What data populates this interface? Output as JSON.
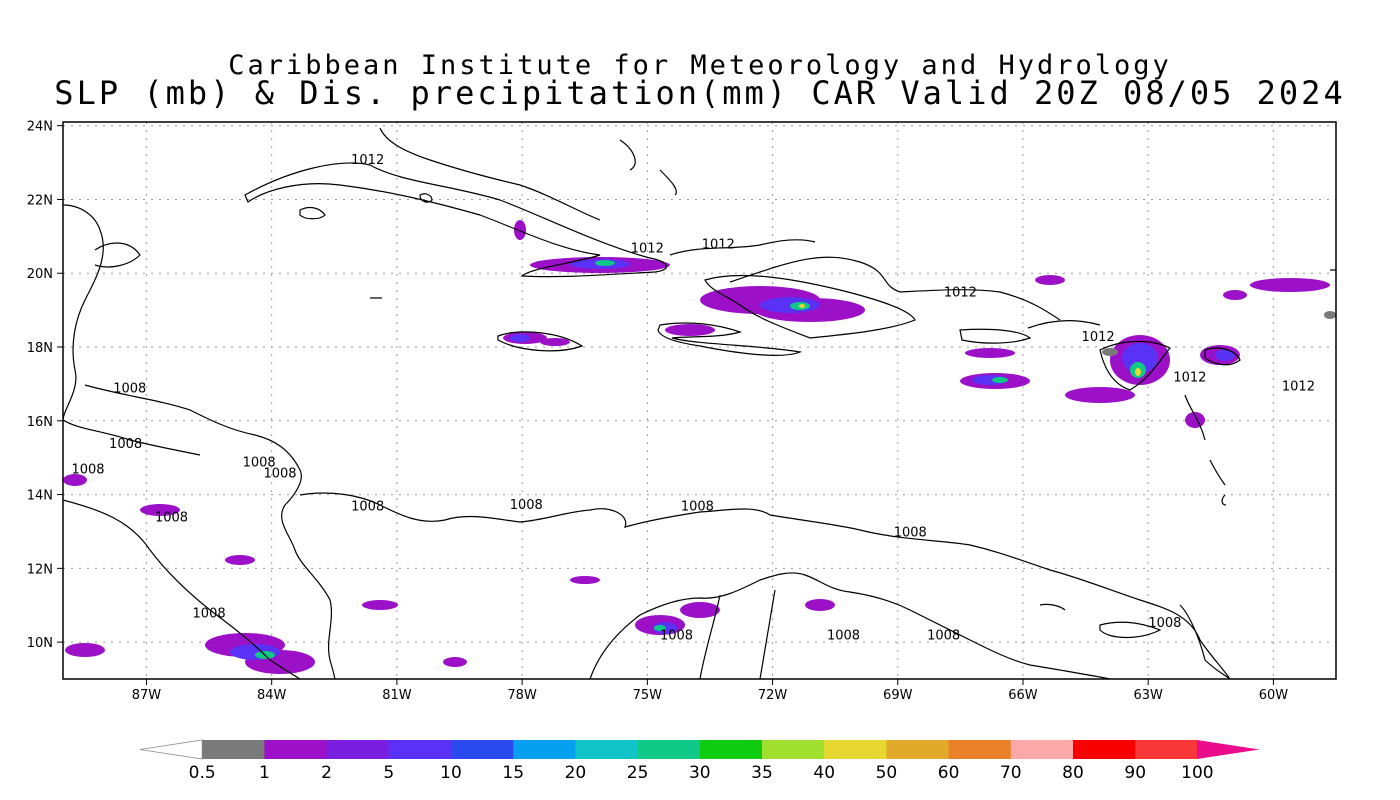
{
  "header": {
    "institute": "Caribbean Institute for Meteorology and Hydrology",
    "product": "SLP (mb) & Dis. precipitation(mm) CAR Valid 20Z 08/05 2024"
  },
  "map": {
    "lon_range": [
      -89,
      -58.5
    ],
    "lat_range": [
      9,
      24.1
    ],
    "lat_ticks": [
      {
        "value": 24,
        "label": "24N"
      },
      {
        "value": 22,
        "label": "22N"
      },
      {
        "value": 20,
        "label": "20N"
      },
      {
        "value": 18,
        "label": "18N"
      },
      {
        "value": 16,
        "label": "16N"
      },
      {
        "value": 14,
        "label": "14N"
      },
      {
        "value": 12,
        "label": "12N"
      },
      {
        "value": 10,
        "label": "10N"
      }
    ],
    "lon_ticks": [
      {
        "value": -87,
        "label": "87W"
      },
      {
        "value": -84,
        "label": "84W"
      },
      {
        "value": -81,
        "label": "81W"
      },
      {
        "value": -78,
        "label": "78W"
      },
      {
        "value": -75,
        "label": "75W"
      },
      {
        "value": -72,
        "label": "72W"
      },
      {
        "value": -69,
        "label": "69W"
      },
      {
        "value": -66,
        "label": "66W"
      },
      {
        "value": -63,
        "label": "63W"
      },
      {
        "value": -60,
        "label": "60W"
      }
    ],
    "isobar_labels": [
      {
        "text": "1012",
        "lon": -81.7,
        "lat": 23.1
      },
      {
        "text": "1012",
        "lon": -75.0,
        "lat": 20.7
      },
      {
        "text": "1012",
        "lon": -73.3,
        "lat": 20.8
      },
      {
        "text": "1012",
        "lon": -67.5,
        "lat": 19.5
      },
      {
        "text": "1012",
        "lon": -64.2,
        "lat": 18.3
      },
      {
        "text": "1012",
        "lon": -62.0,
        "lat": 17.2
      },
      {
        "text": "1012",
        "lon": -59.4,
        "lat": 16.95
      },
      {
        "text": "1008",
        "lon": -87.4,
        "lat": 16.9
      },
      {
        "text": "1008",
        "lon": -87.5,
        "lat": 15.4
      },
      {
        "text": "1008",
        "lon": -88.4,
        "lat": 14.7
      },
      {
        "text": "1008",
        "lon": -84.3,
        "lat": 14.9
      },
      {
        "text": "1008",
        "lon": -83.8,
        "lat": 14.6
      },
      {
        "text": "1008",
        "lon": -86.4,
        "lat": 13.4
      },
      {
        "text": "1008",
        "lon": -81.7,
        "lat": 13.7
      },
      {
        "text": "1008",
        "lon": -77.9,
        "lat": 13.75
      },
      {
        "text": "1008",
        "lon": -73.8,
        "lat": 13.7
      },
      {
        "text": "1008",
        "lon": -68.7,
        "lat": 13.0
      },
      {
        "text": "1008",
        "lon": -85.5,
        "lat": 10.8
      },
      {
        "text": "1008",
        "lon": -74.3,
        "lat": 10.2
      },
      {
        "text": "1008",
        "lon": -70.3,
        "lat": 10.2
      },
      {
        "text": "1008",
        "lon": -67.9,
        "lat": 10.2
      },
      {
        "text": "1008",
        "lon": -62.6,
        "lat": 10.55
      }
    ]
  },
  "colorbar": {
    "colors": [
      "#ffffff",
      "#7a7a7a",
      "#9c10c8",
      "#7a1ee0",
      "#5a32f5",
      "#2a4af0",
      "#06a0f0",
      "#10c4c8",
      "#10c888",
      "#10cc10",
      "#a2e030",
      "#e6d830",
      "#e2aa2a",
      "#ea8028",
      "#fca8a8",
      "#f80000",
      "#f83838",
      "#ea0c8c"
    ],
    "labels": [
      "0.5",
      "1",
      "2",
      "5",
      "10",
      "15",
      "20",
      "25",
      "30",
      "35",
      "40",
      "50",
      "60",
      "70",
      "80",
      "90",
      "100"
    ]
  }
}
